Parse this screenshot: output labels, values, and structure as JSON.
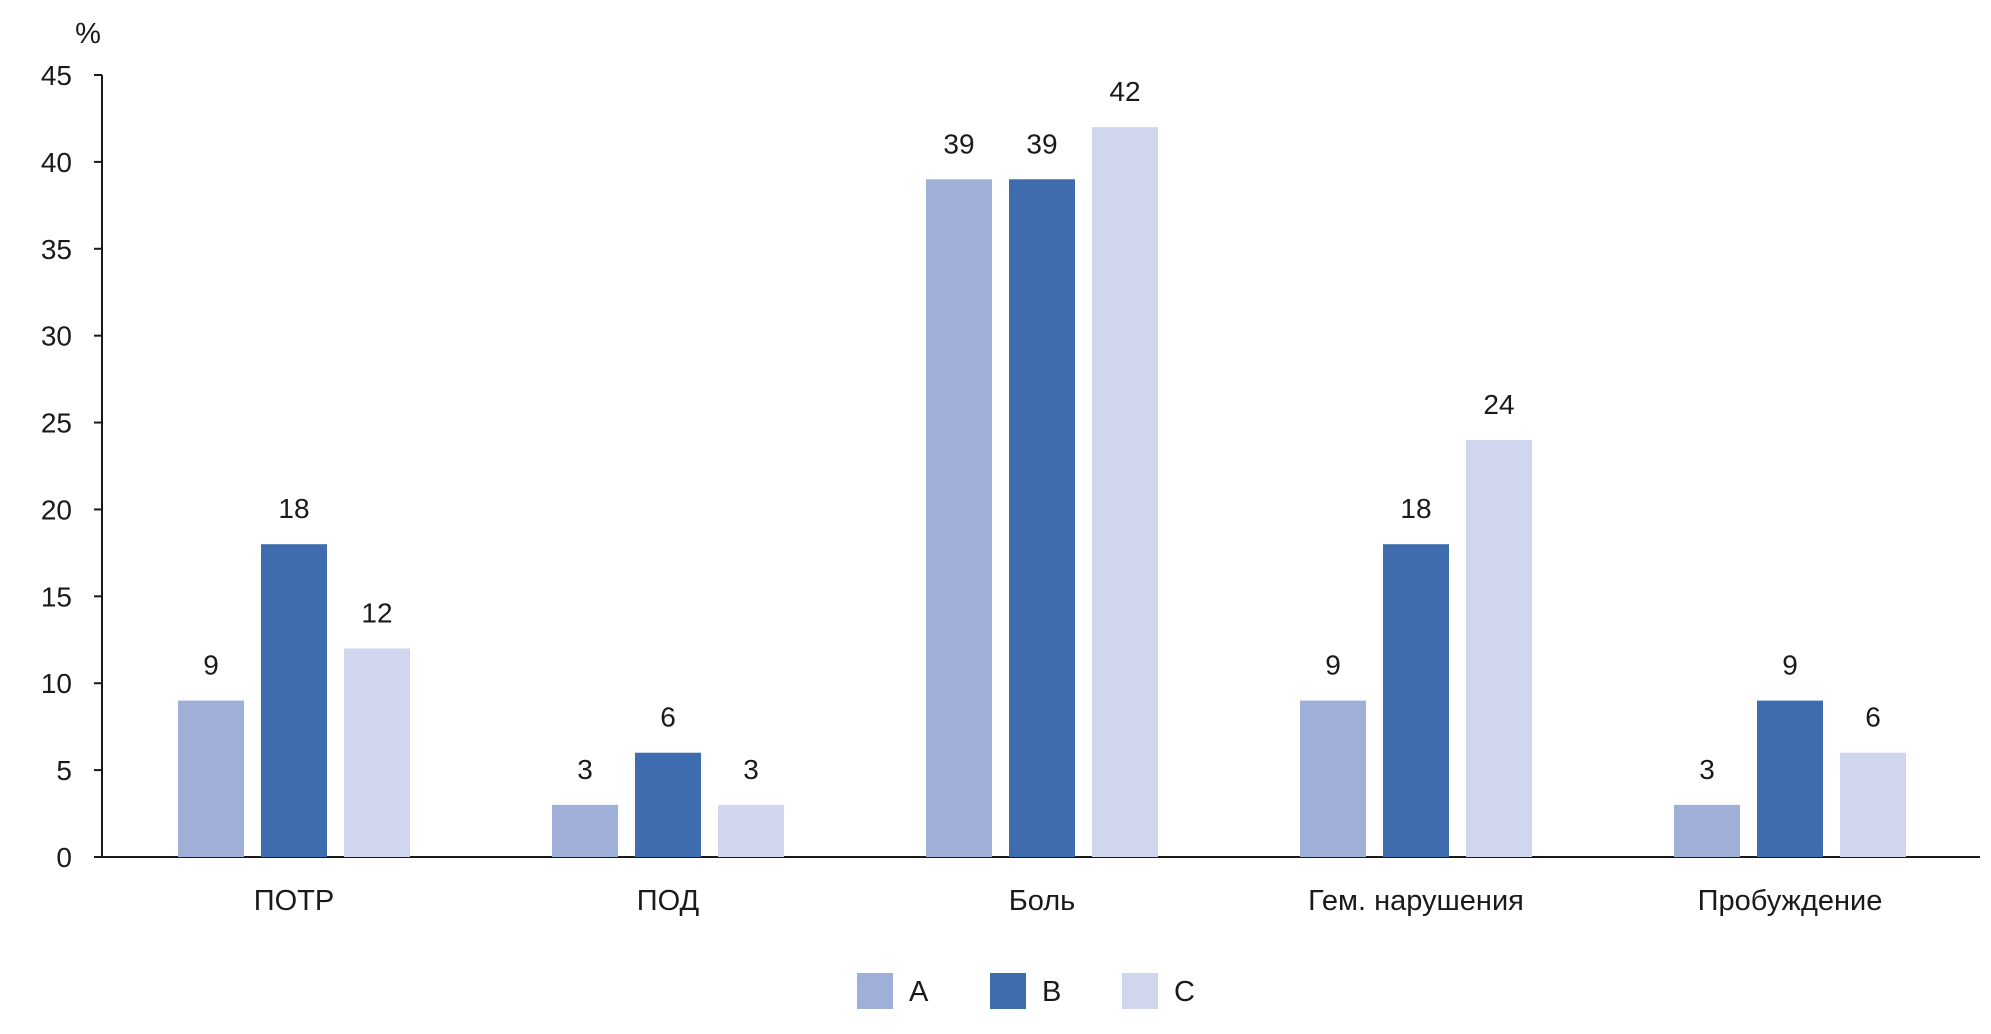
{
  "chart_data": {
    "type": "bar",
    "ylabel": "%",
    "ylim": [
      0,
      45
    ],
    "yticks": [
      0,
      5,
      10,
      15,
      20,
      25,
      30,
      35,
      40,
      45
    ],
    "categories": [
      "ПОТР",
      "ПОД",
      "Боль",
      "Гем. нарушения",
      "Пробуждение"
    ],
    "series": [
      {
        "name": "A",
        "color": "#9fafd8",
        "values": [
          9,
          3,
          39,
          9,
          3
        ]
      },
      {
        "name": "B",
        "color": "#3f6baf",
        "values": [
          18,
          6,
          39,
          18,
          9
        ]
      },
      {
        "name": "C",
        "color": "#d0d6ed",
        "values": [
          12,
          3,
          42,
          24,
          6
        ]
      }
    ],
    "grid": false,
    "data_labels": true,
    "legend_position": "bottom-center"
  }
}
